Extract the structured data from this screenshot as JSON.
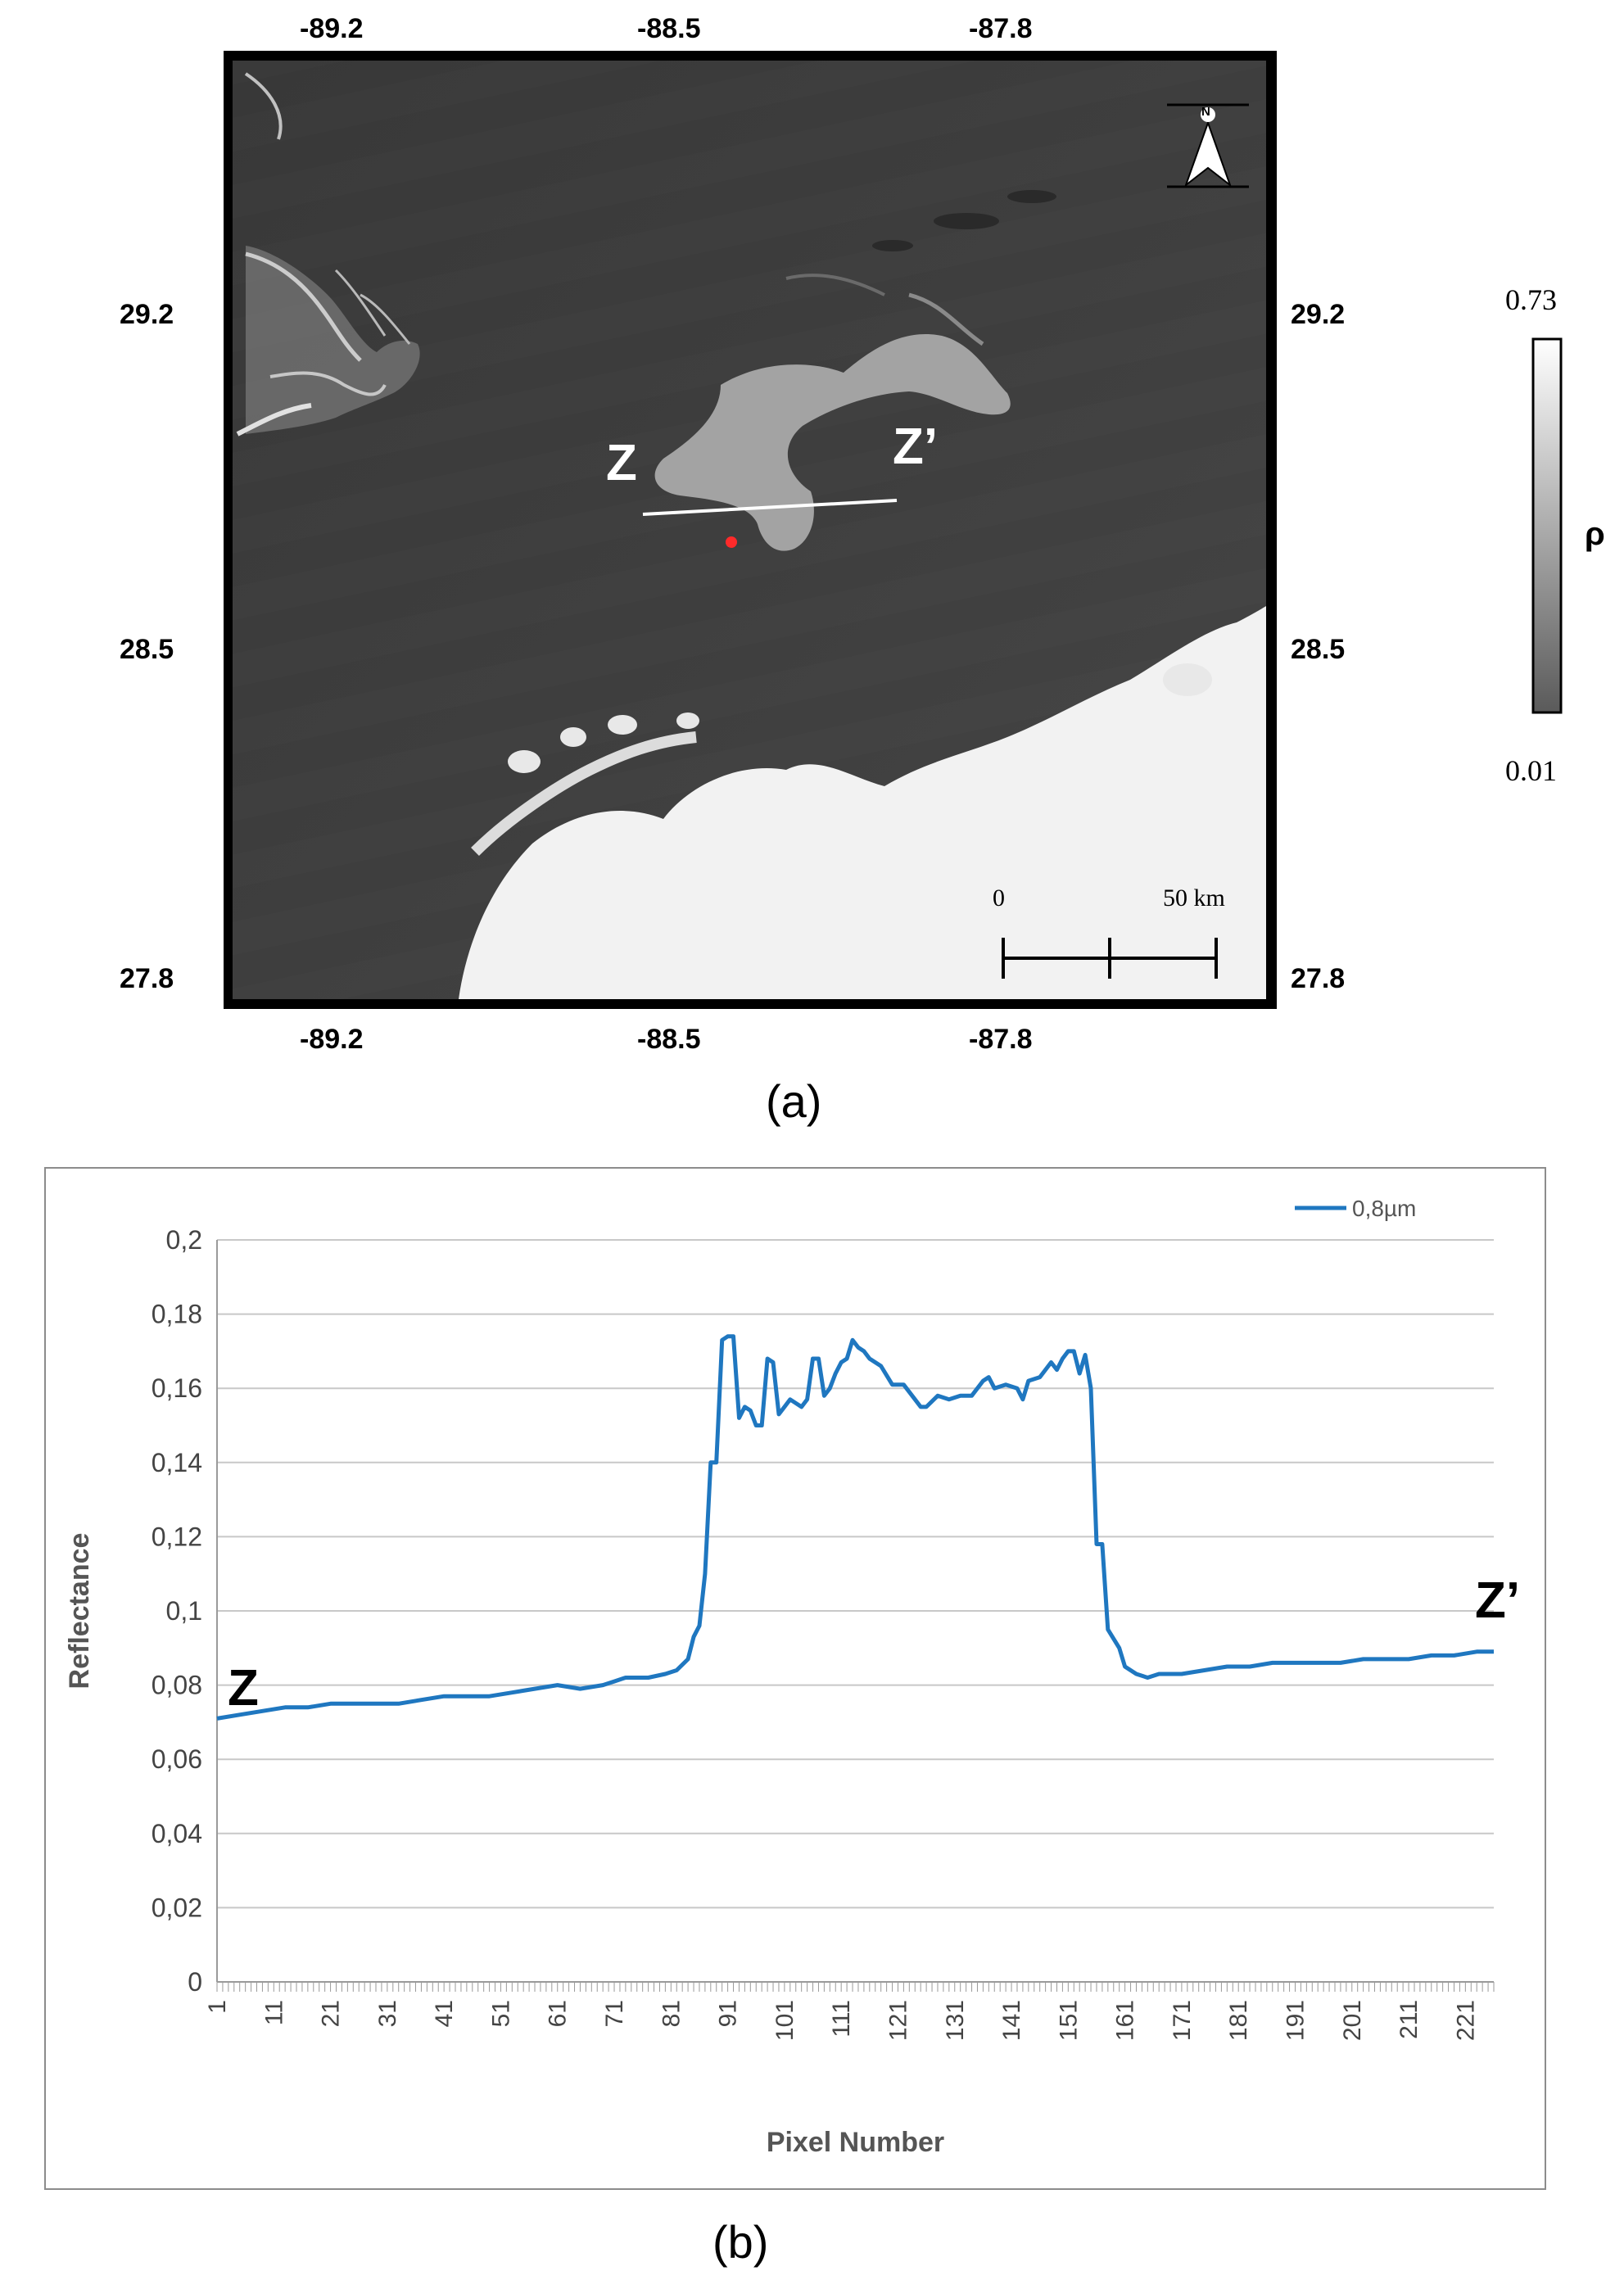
{
  "panel_a": {
    "top_lon_labels": [
      "-89.2",
      "-88.5",
      "-87.8"
    ],
    "bottom_lon_labels": [
      "-89.2",
      "-88.5",
      "-87.8"
    ],
    "left_lat_labels": [
      "29.2",
      "28.5",
      "27.8"
    ],
    "right_lat_labels": [
      "29.2",
      "28.5",
      "27.8"
    ],
    "transect_start_label": "Z",
    "transect_end_label": "Z’",
    "north_arrow_letter": "N",
    "scalebar": {
      "zero_label": "0",
      "end_label": "50 km"
    },
    "colorbar": {
      "max_label": "0.73",
      "min_label": "0.01",
      "symbol": "ρ",
      "max_value": 0.73,
      "min_value": 0.01
    },
    "caption": "(a)"
  },
  "panel_b": {
    "caption": "(b)",
    "start_label": "Z",
    "end_label": "Z’",
    "line_color": "#1f77c0"
  },
  "chart_data": {
    "type": "line",
    "xlabel": "Pixel Number",
    "ylabel": "Reflectance",
    "ylim": [
      0,
      0.2
    ],
    "y_ticks": [
      "0",
      "0,02",
      "0,04",
      "0,06",
      "0,08",
      "0,1",
      "0,12",
      "0,14",
      "0,16",
      "0,18",
      "0,2"
    ],
    "x_ticks": [
      "1",
      "11",
      "21",
      "31",
      "41",
      "51",
      "61",
      "71",
      "81",
      "91",
      "101",
      "111",
      "121",
      "131",
      "141",
      "151",
      "161",
      "171",
      "181",
      "191",
      "201",
      "211",
      "221"
    ],
    "xlim": [
      1,
      226
    ],
    "grid": true,
    "legend_position": "top-right",
    "series": [
      {
        "name": "0,8µm",
        "color": "#1f77c0",
        "points": [
          [
            1,
            0.071
          ],
          [
            5,
            0.072
          ],
          [
            9,
            0.073
          ],
          [
            13,
            0.074
          ],
          [
            17,
            0.074
          ],
          [
            21,
            0.075
          ],
          [
            25,
            0.075
          ],
          [
            29,
            0.075
          ],
          [
            33,
            0.075
          ],
          [
            37,
            0.076
          ],
          [
            41,
            0.077
          ],
          [
            45,
            0.077
          ],
          [
            49,
            0.077
          ],
          [
            53,
            0.078
          ],
          [
            57,
            0.079
          ],
          [
            61,
            0.08
          ],
          [
            65,
            0.079
          ],
          [
            69,
            0.08
          ],
          [
            71,
            0.081
          ],
          [
            73,
            0.082
          ],
          [
            77,
            0.082
          ],
          [
            80,
            0.083
          ],
          [
            82,
            0.084
          ],
          [
            84,
            0.087
          ],
          [
            85,
            0.093
          ],
          [
            86,
            0.096
          ],
          [
            87,
            0.11
          ],
          [
            88,
            0.14
          ],
          [
            89,
            0.14
          ],
          [
            90,
            0.173
          ],
          [
            91,
            0.174
          ],
          [
            92,
            0.174
          ],
          [
            93,
            0.152
          ],
          [
            94,
            0.155
          ],
          [
            95,
            0.154
          ],
          [
            96,
            0.15
          ],
          [
            97,
            0.15
          ],
          [
            98,
            0.168
          ],
          [
            99,
            0.167
          ],
          [
            100,
            0.153
          ],
          [
            101,
            0.155
          ],
          [
            102,
            0.157
          ],
          [
            103,
            0.156
          ],
          [
            104,
            0.155
          ],
          [
            105,
            0.157
          ],
          [
            106,
            0.168
          ],
          [
            107,
            0.168
          ],
          [
            108,
            0.158
          ],
          [
            109,
            0.16
          ],
          [
            110,
            0.164
          ],
          [
            111,
            0.167
          ],
          [
            112,
            0.168
          ],
          [
            113,
            0.173
          ],
          [
            114,
            0.171
          ],
          [
            115,
            0.17
          ],
          [
            116,
            0.168
          ],
          [
            118,
            0.166
          ],
          [
            120,
            0.161
          ],
          [
            122,
            0.161
          ],
          [
            124,
            0.157
          ],
          [
            125,
            0.155
          ],
          [
            126,
            0.155
          ],
          [
            128,
            0.158
          ],
          [
            130,
            0.157
          ],
          [
            132,
            0.158
          ],
          [
            134,
            0.158
          ],
          [
            136,
            0.162
          ],
          [
            137,
            0.163
          ],
          [
            138,
            0.16
          ],
          [
            140,
            0.161
          ],
          [
            142,
            0.16
          ],
          [
            143,
            0.157
          ],
          [
            144,
            0.162
          ],
          [
            146,
            0.163
          ],
          [
            148,
            0.167
          ],
          [
            149,
            0.165
          ],
          [
            150,
            0.168
          ],
          [
            151,
            0.17
          ],
          [
            152,
            0.17
          ],
          [
            153,
            0.164
          ],
          [
            154,
            0.169
          ],
          [
            155,
            0.16
          ],
          [
            156,
            0.118
          ],
          [
            157,
            0.118
          ],
          [
            158,
            0.095
          ],
          [
            160,
            0.09
          ],
          [
            161,
            0.085
          ],
          [
            163,
            0.083
          ],
          [
            165,
            0.082
          ],
          [
            167,
            0.083
          ],
          [
            171,
            0.083
          ],
          [
            175,
            0.084
          ],
          [
            179,
            0.085
          ],
          [
            183,
            0.085
          ],
          [
            187,
            0.086
          ],
          [
            191,
            0.086
          ],
          [
            195,
            0.086
          ],
          [
            199,
            0.086
          ],
          [
            203,
            0.087
          ],
          [
            207,
            0.087
          ],
          [
            211,
            0.087
          ],
          [
            215,
            0.088
          ],
          [
            219,
            0.088
          ],
          [
            223,
            0.089
          ],
          [
            226,
            0.089
          ]
        ]
      }
    ]
  }
}
